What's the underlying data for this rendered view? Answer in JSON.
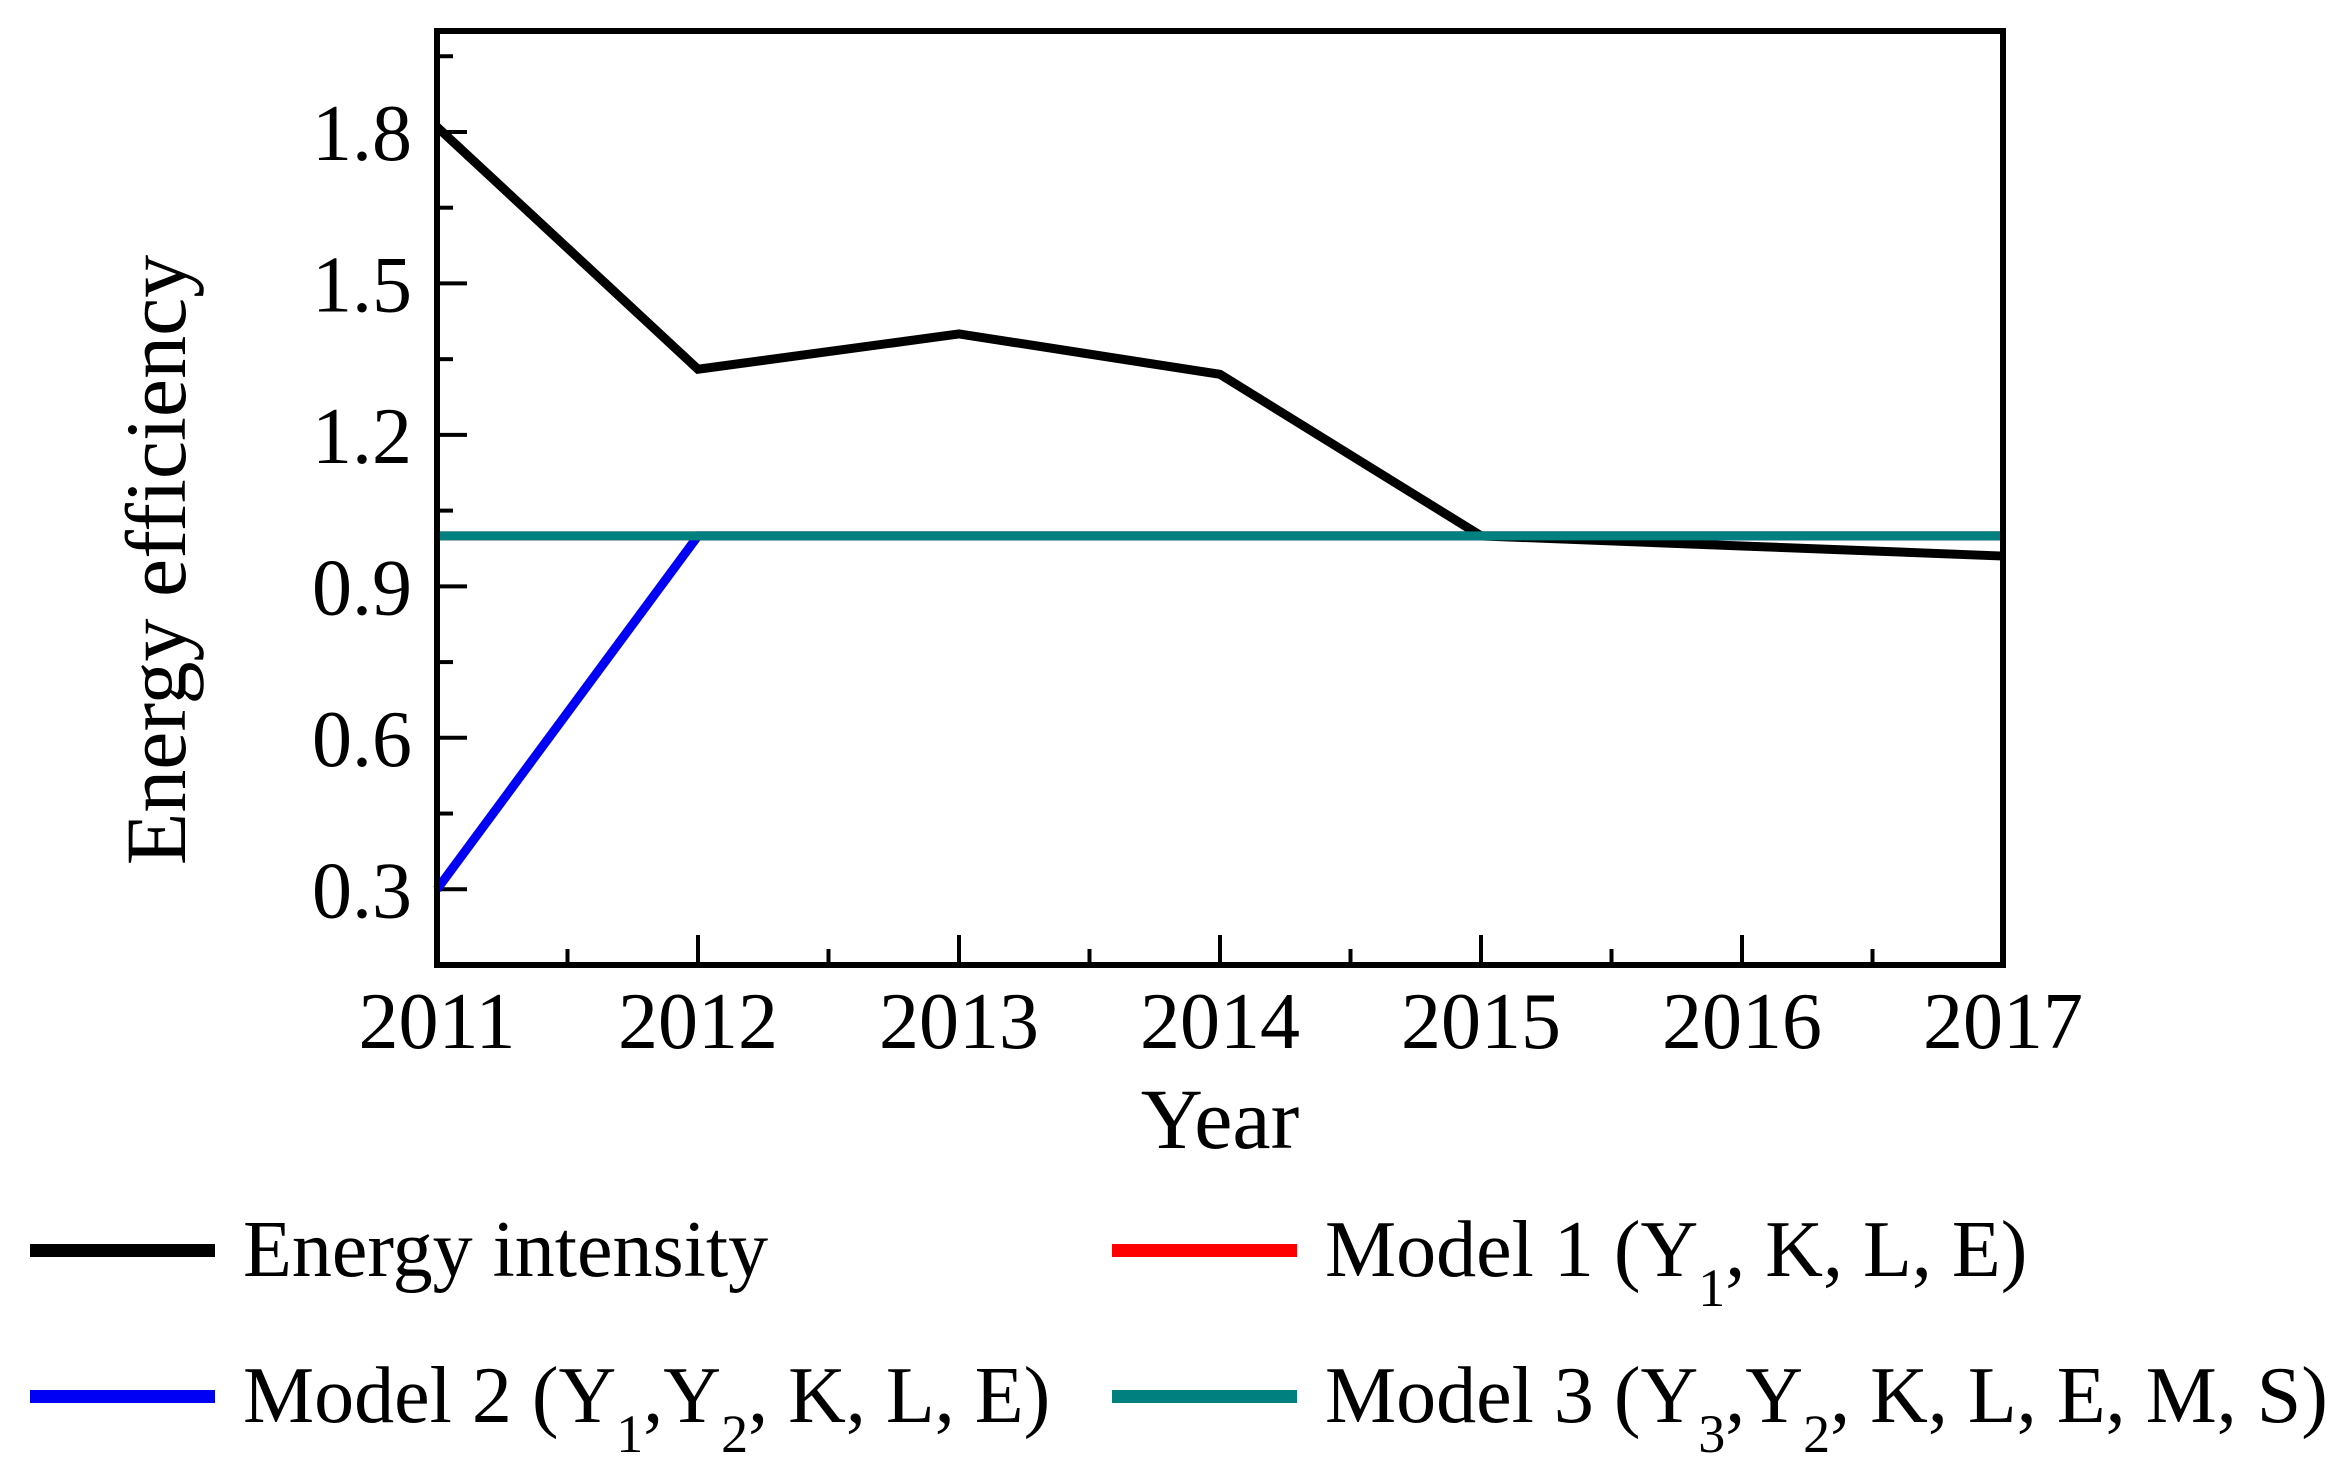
{
  "axes": {
    "x_title": "Year",
    "y_title": "Energy efficiency",
    "x_tick_labels": [
      "2011",
      "2012",
      "2013",
      "2014",
      "2015",
      "2016",
      "2017"
    ],
    "y_tick_labels": [
      "0.3",
      "0.6",
      "0.9",
      "1.2",
      "1.5",
      "1.8"
    ]
  },
  "legend": {
    "items": [
      {
        "id": "energy-intensity",
        "color": "#000000",
        "label_plain": "Energy intensity",
        "segments": [
          {
            "text": "Energy intensity"
          }
        ]
      },
      {
        "id": "model-1",
        "color": "#ff0000",
        "label_plain": "Model 1 (Y₁, K, L, E)",
        "segments": [
          {
            "text": "Model 1 (Y"
          },
          {
            "sub": "1"
          },
          {
            "text": ", K, L, E)"
          }
        ]
      },
      {
        "id": "model-2",
        "color": "#0000f5",
        "label_plain": "Model 2 (Y₁,Y₂, K, L, E)",
        "segments": [
          {
            "text": "Model 2 (Y"
          },
          {
            "sub": "1"
          },
          {
            "text": ",Y"
          },
          {
            "sub": "2"
          },
          {
            "text": ", K, L, E)"
          }
        ]
      },
      {
        "id": "model-3",
        "color": "#018080",
        "label_plain": "Model 3 (Y₃,Y₂, K, L, E, M, S)",
        "segments": [
          {
            "text": "Model 3 (Y"
          },
          {
            "sub": "3"
          },
          {
            "text": ",Y"
          },
          {
            "sub": "2"
          },
          {
            "text": ", K, L, E, M, S)"
          }
        ]
      }
    ]
  },
  "chart_data": {
    "type": "line",
    "title": "",
    "xlabel": "Year",
    "ylabel": "Energy efficiency",
    "x": [
      2011,
      2012,
      2013,
      2014,
      2015,
      2016,
      2017
    ],
    "series": [
      {
        "name": "Energy intensity",
        "color": "#000000",
        "z": 3,
        "values": [
          1.81,
          1.33,
          1.4,
          1.32,
          1.0,
          0.98,
          0.96
        ]
      },
      {
        "name": "Model 1 (Y₁, K, L, E)",
        "color": "#ff0000",
        "z": 1,
        "values": [
          1.0,
          1.0,
          1.0,
          1.0,
          1.0,
          1.0,
          1.0
        ]
      },
      {
        "name": "Model 2 (Y₁,Y₂, K, L, E)",
        "color": "#0000f5",
        "z": 2,
        "values": [
          0.3,
          1.0,
          1.0,
          1.0,
          1.0,
          1.0,
          1.0
        ]
      },
      {
        "name": "Model 3 (Y₃,Y₂, K, L, E, M, S)",
        "color": "#018080",
        "z": 4,
        "values": [
          1.0,
          1.0,
          1.0,
          1.0,
          1.0,
          1.0,
          1.0
        ]
      }
    ],
    "xlim": [
      2011,
      2017
    ],
    "ylim": [
      0.15,
      2.0
    ],
    "x_major_ticks": [
      2011,
      2012,
      2013,
      2014,
      2015,
      2016,
      2017
    ],
    "x_minor_ticks": [
      2011.5,
      2012.5,
      2013.5,
      2014.5,
      2015.5,
      2016.5
    ],
    "y_major_ticks": [
      0.3,
      0.6,
      0.9,
      1.2,
      1.5,
      1.8
    ],
    "y_minor_ticks": [
      0.45,
      0.75,
      1.05,
      1.35,
      1.65,
      1.95
    ],
    "grid": false,
    "legend_position": "below"
  }
}
